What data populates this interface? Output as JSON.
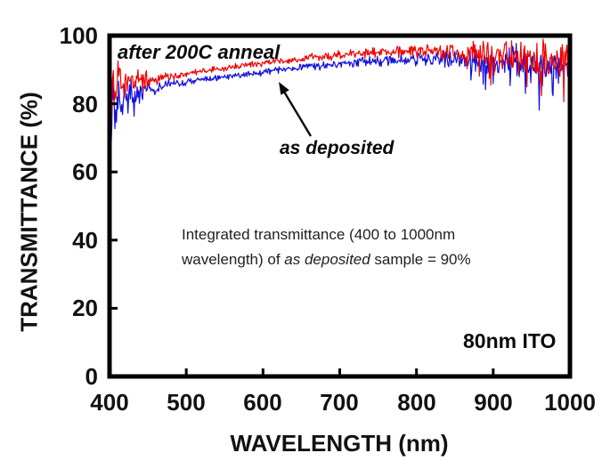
{
  "figure": {
    "background": "#ffffff",
    "frame_color": "#000000"
  },
  "chart_data": {
    "type": "line",
    "title": "",
    "xlabel": "WAVELENGTH (nm)",
    "ylabel": "TRANSMITTANCE (%)",
    "xlim": [
      400,
      1000
    ],
    "ylim": [
      0,
      100
    ],
    "grid": false,
    "legend_position": "none",
    "xticks": [
      400,
      500,
      600,
      700,
      800,
      900,
      1000
    ],
    "yticks": [
      0,
      20,
      40,
      60,
      80,
      100
    ],
    "xtick_labels": [
      "400",
      "500",
      "600",
      "700",
      "800",
      "900",
      "1000"
    ],
    "ytick_labels_top_to_bottom": [
      "100",
      "80",
      "60",
      "40",
      "20",
      "0"
    ],
    "series": [
      {
        "name": "as deposited",
        "color": "#0f0fdd",
        "mean_anchors": [
          [
            400,
            83
          ],
          [
            402,
            70
          ],
          [
            404,
            82
          ],
          [
            408,
            78
          ],
          [
            412,
            84
          ],
          [
            416,
            79
          ],
          [
            420,
            85
          ],
          [
            424,
            81
          ],
          [
            428,
            85
          ],
          [
            432,
            82
          ],
          [
            436,
            84
          ],
          [
            440,
            83
          ],
          [
            445,
            85
          ],
          [
            450,
            85
          ],
          [
            460,
            84.3
          ],
          [
            470,
            85.5
          ],
          [
            480,
            85.8
          ],
          [
            490,
            86
          ],
          [
            500,
            86.3
          ],
          [
            520,
            87
          ],
          [
            540,
            87.6
          ],
          [
            560,
            88.2
          ],
          [
            580,
            88.7
          ],
          [
            600,
            89.2
          ],
          [
            620,
            89.8
          ],
          [
            640,
            90.3
          ],
          [
            660,
            90.8
          ],
          [
            680,
            91.2
          ],
          [
            700,
            91.6
          ],
          [
            720,
            92
          ],
          [
            740,
            92.3
          ],
          [
            760,
            92.6
          ],
          [
            780,
            92.8
          ],
          [
            800,
            93
          ],
          [
            820,
            93.2
          ],
          [
            840,
            93.2
          ],
          [
            860,
            93.1
          ],
          [
            880,
            92.8
          ],
          [
            900,
            92.5
          ],
          [
            920,
            92.1
          ],
          [
            940,
            91.8
          ],
          [
            960,
            91.5
          ],
          [
            980,
            91.3
          ],
          [
            1000,
            91.3
          ]
        ],
        "noise_anchors": [
          [
            400,
            6
          ],
          [
            410,
            5.5
          ],
          [
            425,
            5
          ],
          [
            440,
            3.5
          ],
          [
            455,
            2.2
          ],
          [
            470,
            1.6
          ],
          [
            490,
            1.3
          ],
          [
            520,
            1.1
          ],
          [
            600,
            1.1
          ],
          [
            700,
            1.5
          ],
          [
            780,
            2.2
          ],
          [
            820,
            2.5
          ],
          [
            845,
            2.8
          ],
          [
            865,
            3.6
          ],
          [
            885,
            4.6
          ],
          [
            905,
            5.2
          ],
          [
            930,
            5.8
          ],
          [
            960,
            6.2
          ],
          [
            1000,
            6.5
          ]
        ]
      },
      {
        "name": "after 200C anneal",
        "color": "#f00000",
        "mean_anchors": [
          [
            400,
            91
          ],
          [
            402,
            77
          ],
          [
            404,
            88
          ],
          [
            408,
            84
          ],
          [
            412,
            90
          ],
          [
            416,
            84
          ],
          [
            420,
            89
          ],
          [
            424,
            85
          ],
          [
            428,
            89
          ],
          [
            432,
            86
          ],
          [
            436,
            89
          ],
          [
            440,
            87
          ],
          [
            445,
            88
          ],
          [
            450,
            87.5
          ],
          [
            460,
            87.2
          ],
          [
            470,
            87.8
          ],
          [
            480,
            88
          ],
          [
            490,
            88.3
          ],
          [
            500,
            88.7
          ],
          [
            520,
            89.4
          ],
          [
            540,
            90.1
          ],
          [
            560,
            90.8
          ],
          [
            580,
            91.4
          ],
          [
            600,
            91.9
          ],
          [
            620,
            92.5
          ],
          [
            640,
            93
          ],
          [
            660,
            93.5
          ],
          [
            680,
            93.9
          ],
          [
            700,
            94.3
          ],
          [
            720,
            94.6
          ],
          [
            740,
            94.9
          ],
          [
            760,
            95.1
          ],
          [
            780,
            95.3
          ],
          [
            800,
            95.4
          ],
          [
            820,
            95.5
          ],
          [
            840,
            95.5
          ],
          [
            860,
            95.3
          ],
          [
            880,
            95.1
          ],
          [
            900,
            94.8
          ],
          [
            920,
            94.4
          ],
          [
            940,
            94.1
          ],
          [
            960,
            93.8
          ],
          [
            980,
            93.6
          ],
          [
            1000,
            93.6
          ]
        ],
        "noise_anchors": [
          [
            400,
            5.5
          ],
          [
            410,
            5
          ],
          [
            425,
            4.5
          ],
          [
            440,
            3.2
          ],
          [
            455,
            2
          ],
          [
            470,
            1.5
          ],
          [
            490,
            1.2
          ],
          [
            520,
            1.1
          ],
          [
            600,
            1.1
          ],
          [
            700,
            1.5
          ],
          [
            780,
            2.2
          ],
          [
            820,
            2.5
          ],
          [
            845,
            2.8
          ],
          [
            865,
            3.6
          ],
          [
            885,
            4.6
          ],
          [
            905,
            5.2
          ],
          [
            930,
            5.8
          ],
          [
            960,
            6.2
          ],
          [
            1000,
            6.5
          ]
        ]
      }
    ],
    "annotations": {
      "curve_label_top": "after 200C anneal",
      "curve_label_arrow": "as deposited",
      "note_line1": "Integrated transmittance (400 to 1000nm",
      "note_line2_pre": "wavelength) of ",
      "note_line2_italic": "as deposited",
      "note_line2_post": " sample = 90%",
      "integrated_transmittance_as_deposited_percent": 90,
      "sample_label": "80nm ITO"
    }
  }
}
